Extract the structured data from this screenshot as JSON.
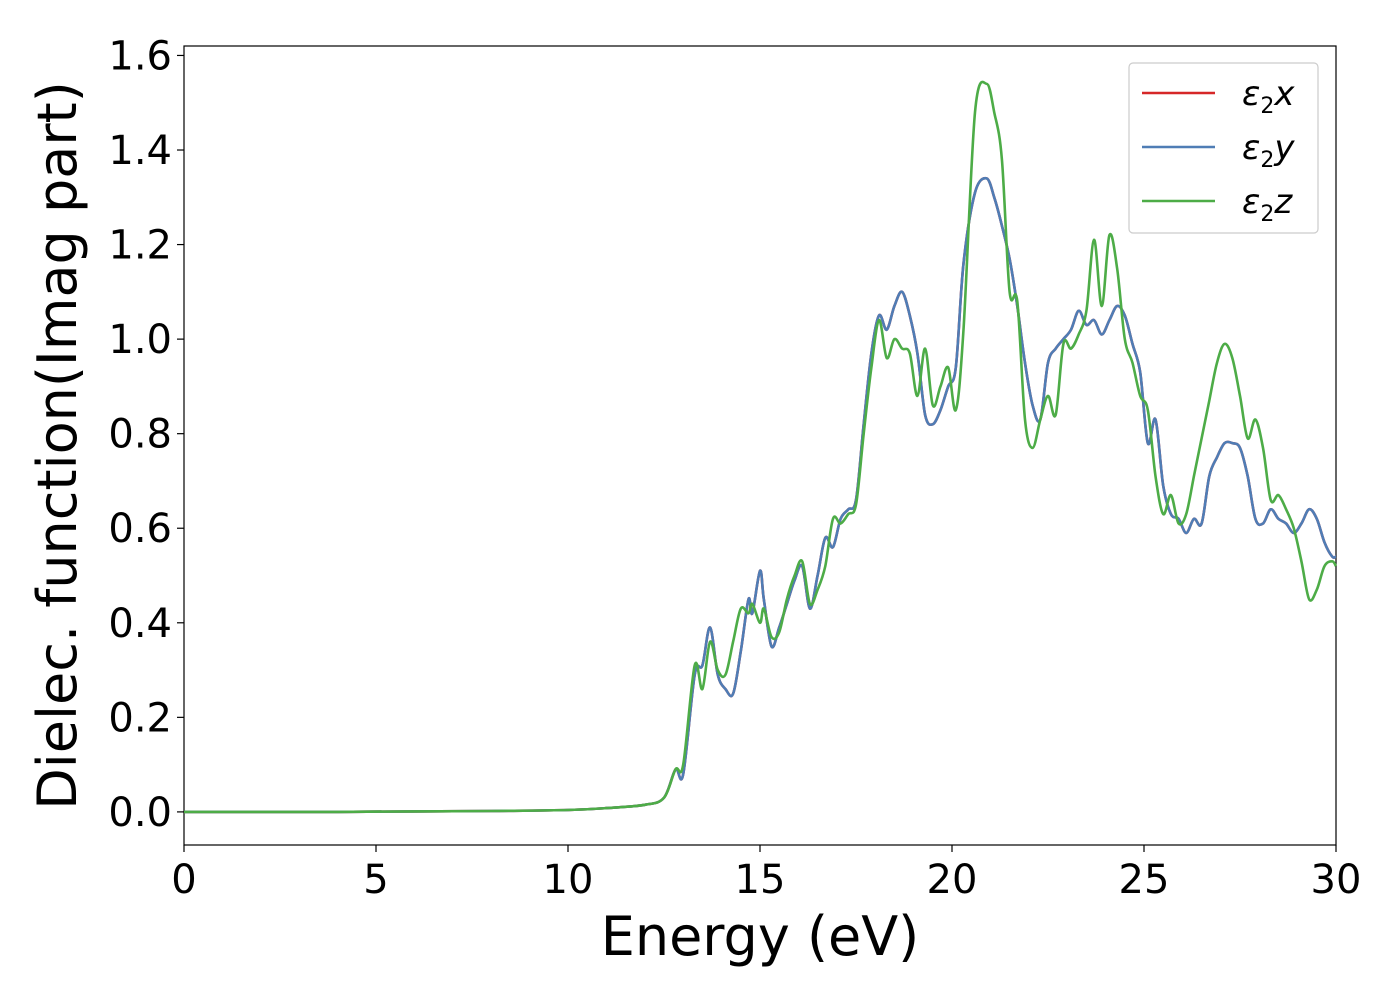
{
  "chart_data": {
    "type": "line",
    "xlabel": "Energy (eV)",
    "ylabel": "Dielec. function(Imag part)",
    "xlim": [
      0,
      30
    ],
    "ylim": [
      -0.07,
      1.62
    ],
    "xticks": [
      0,
      5,
      10,
      15,
      20,
      25,
      30
    ],
    "xtick_labels": [
      "0",
      "5",
      "10",
      "15",
      "20",
      "25",
      "30"
    ],
    "yticks": [
      0.0,
      0.2,
      0.4,
      0.6,
      0.8,
      1.0,
      1.2,
      1.4,
      1.6
    ],
    "ytick_labels": [
      "0.0",
      "0.2",
      "0.4",
      "0.6",
      "0.8",
      "1.0",
      "1.2",
      "1.4",
      "1.6"
    ],
    "grid": false,
    "legend_position": "top-right",
    "series": [
      {
        "name": "ε₂x",
        "legend_base": "ε",
        "legend_sub": "2",
        "legend_var": "x",
        "color": "#d62728",
        "x": [
          0,
          2,
          4,
          6,
          8,
          10,
          11,
          12,
          12.5,
          12.8,
          13.0,
          13.3,
          13.5,
          13.7,
          13.9,
          14.1,
          14.3,
          14.5,
          14.7,
          14.8,
          15.0,
          15.1,
          15.3,
          15.5,
          15.7,
          15.9,
          16.1,
          16.3,
          16.5,
          16.7,
          16.9,
          17.1,
          17.3,
          17.5,
          17.7,
          17.9,
          18.1,
          18.3,
          18.5,
          18.7,
          18.9,
          19.1,
          19.3,
          19.5,
          19.7,
          19.9,
          20.1,
          20.3,
          20.6,
          20.9,
          21.1,
          21.3,
          21.5,
          21.7,
          21.9,
          22.1,
          22.3,
          22.5,
          22.7,
          22.9,
          23.1,
          23.3,
          23.5,
          23.7,
          23.9,
          24.1,
          24.3,
          24.5,
          24.7,
          24.9,
          25.1,
          25.3,
          25.5,
          25.7,
          25.9,
          26.1,
          26.3,
          26.5,
          26.7,
          26.9,
          27.1,
          27.3,
          27.5,
          27.7,
          27.9,
          28.1,
          28.3,
          28.5,
          28.7,
          28.9,
          29.1,
          29.3,
          29.5,
          29.7,
          29.9,
          30
        ],
        "values": [
          0.0,
          0.0,
          0.0,
          0.001,
          0.002,
          0.004,
          0.008,
          0.015,
          0.03,
          0.09,
          0.08,
          0.29,
          0.31,
          0.39,
          0.29,
          0.26,
          0.25,
          0.34,
          0.45,
          0.42,
          0.51,
          0.45,
          0.35,
          0.39,
          0.44,
          0.49,
          0.52,
          0.43,
          0.5,
          0.58,
          0.56,
          0.62,
          0.64,
          0.66,
          0.82,
          0.97,
          1.05,
          1.02,
          1.07,
          1.1,
          1.05,
          0.97,
          0.84,
          0.82,
          0.85,
          0.9,
          0.94,
          1.16,
          1.31,
          1.34,
          1.3,
          1.24,
          1.17,
          1.07,
          0.95,
          0.86,
          0.83,
          0.95,
          0.98,
          1.0,
          1.02,
          1.06,
          1.03,
          1.04,
          1.01,
          1.04,
          1.07,
          1.05,
          0.99,
          0.93,
          0.78,
          0.83,
          0.69,
          0.63,
          0.62,
          0.59,
          0.62,
          0.61,
          0.71,
          0.75,
          0.78,
          0.78,
          0.77,
          0.71,
          0.62,
          0.61,
          0.64,
          0.62,
          0.61,
          0.59,
          0.61,
          0.64,
          0.62,
          0.57,
          0.54,
          0.54
        ]
      },
      {
        "name": "ε₂y",
        "legend_base": "ε",
        "legend_sub": "2",
        "legend_var": "y",
        "color": "#4f7db5",
        "x": [
          0,
          2,
          4,
          6,
          8,
          10,
          11,
          12,
          12.5,
          12.8,
          13.0,
          13.3,
          13.5,
          13.7,
          13.9,
          14.1,
          14.3,
          14.5,
          14.7,
          14.8,
          15.0,
          15.1,
          15.3,
          15.5,
          15.7,
          15.9,
          16.1,
          16.3,
          16.5,
          16.7,
          16.9,
          17.1,
          17.3,
          17.5,
          17.7,
          17.9,
          18.1,
          18.3,
          18.5,
          18.7,
          18.9,
          19.1,
          19.3,
          19.5,
          19.7,
          19.9,
          20.1,
          20.3,
          20.6,
          20.9,
          21.1,
          21.3,
          21.5,
          21.7,
          21.9,
          22.1,
          22.3,
          22.5,
          22.7,
          22.9,
          23.1,
          23.3,
          23.5,
          23.7,
          23.9,
          24.1,
          24.3,
          24.5,
          24.7,
          24.9,
          25.1,
          25.3,
          25.5,
          25.7,
          25.9,
          26.1,
          26.3,
          26.5,
          26.7,
          26.9,
          27.1,
          27.3,
          27.5,
          27.7,
          27.9,
          28.1,
          28.3,
          28.5,
          28.7,
          28.9,
          29.1,
          29.3,
          29.5,
          29.7,
          29.9,
          30
        ],
        "values": [
          0.0,
          0.0,
          0.0,
          0.001,
          0.002,
          0.004,
          0.008,
          0.015,
          0.03,
          0.09,
          0.08,
          0.29,
          0.31,
          0.39,
          0.29,
          0.26,
          0.25,
          0.34,
          0.45,
          0.42,
          0.51,
          0.45,
          0.35,
          0.39,
          0.44,
          0.49,
          0.52,
          0.43,
          0.5,
          0.58,
          0.56,
          0.62,
          0.64,
          0.66,
          0.82,
          0.97,
          1.05,
          1.02,
          1.07,
          1.1,
          1.05,
          0.97,
          0.84,
          0.82,
          0.85,
          0.9,
          0.94,
          1.16,
          1.31,
          1.34,
          1.3,
          1.24,
          1.17,
          1.07,
          0.95,
          0.86,
          0.83,
          0.95,
          0.98,
          1.0,
          1.02,
          1.06,
          1.03,
          1.04,
          1.01,
          1.04,
          1.07,
          1.05,
          0.99,
          0.93,
          0.78,
          0.83,
          0.69,
          0.63,
          0.62,
          0.59,
          0.62,
          0.61,
          0.71,
          0.75,
          0.78,
          0.78,
          0.77,
          0.71,
          0.62,
          0.61,
          0.64,
          0.62,
          0.61,
          0.59,
          0.61,
          0.64,
          0.62,
          0.57,
          0.54,
          0.54
        ]
      },
      {
        "name": "ε₂z",
        "legend_base": "ε",
        "legend_sub": "2",
        "legend_var": "z",
        "color": "#4dac47",
        "x": [
          0,
          2,
          4,
          6,
          8,
          10,
          11,
          12,
          12.5,
          12.8,
          13.0,
          13.3,
          13.5,
          13.7,
          13.9,
          14.1,
          14.3,
          14.5,
          14.7,
          14.8,
          15.0,
          15.1,
          15.3,
          15.5,
          15.7,
          15.9,
          16.1,
          16.3,
          16.5,
          16.7,
          16.9,
          17.1,
          17.3,
          17.5,
          17.7,
          17.9,
          18.1,
          18.3,
          18.5,
          18.7,
          18.9,
          19.1,
          19.3,
          19.5,
          19.7,
          19.9,
          20.1,
          20.3,
          20.6,
          20.9,
          21.1,
          21.3,
          21.5,
          21.7,
          21.9,
          22.1,
          22.3,
          22.5,
          22.7,
          22.9,
          23.1,
          23.3,
          23.5,
          23.7,
          23.9,
          24.1,
          24.3,
          24.5,
          24.7,
          24.9,
          25.1,
          25.3,
          25.5,
          25.7,
          25.9,
          26.1,
          26.3,
          26.5,
          26.7,
          26.9,
          27.1,
          27.3,
          27.5,
          27.7,
          27.9,
          28.1,
          28.3,
          28.5,
          28.7,
          28.9,
          29.1,
          29.3,
          29.5,
          29.7,
          29.9,
          30
        ],
        "values": [
          0.0,
          0.0,
          0.0,
          0.001,
          0.002,
          0.004,
          0.008,
          0.015,
          0.03,
          0.09,
          0.1,
          0.31,
          0.26,
          0.36,
          0.3,
          0.29,
          0.36,
          0.43,
          0.42,
          0.44,
          0.4,
          0.43,
          0.37,
          0.38,
          0.45,
          0.5,
          0.53,
          0.44,
          0.47,
          0.52,
          0.62,
          0.61,
          0.63,
          0.65,
          0.8,
          0.94,
          1.04,
          0.96,
          1.0,
          0.98,
          0.97,
          0.88,
          0.98,
          0.86,
          0.9,
          0.94,
          0.85,
          1.02,
          1.48,
          1.54,
          1.48,
          1.38,
          1.1,
          1.08,
          0.83,
          0.77,
          0.83,
          0.88,
          0.84,
          0.99,
          0.98,
          1.01,
          1.06,
          1.21,
          1.07,
          1.22,
          1.15,
          1.0,
          0.95,
          0.88,
          0.85,
          0.71,
          0.63,
          0.67,
          0.61,
          0.63,
          0.71,
          0.79,
          0.87,
          0.95,
          0.99,
          0.96,
          0.88,
          0.79,
          0.83,
          0.77,
          0.66,
          0.67,
          0.64,
          0.6,
          0.53,
          0.45,
          0.47,
          0.52,
          0.53,
          0.52
        ]
      }
    ]
  }
}
